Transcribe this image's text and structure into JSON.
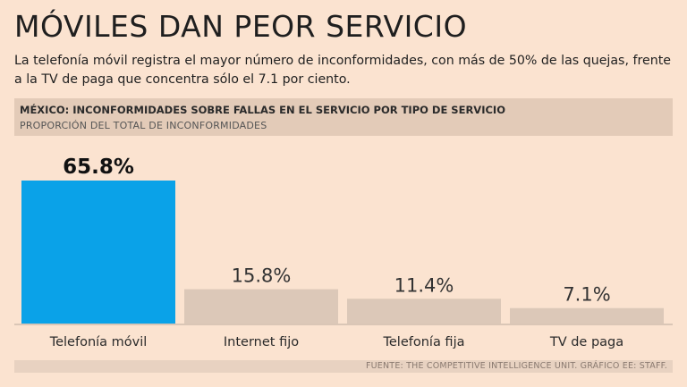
{
  "headline": "MÓVILES DAN PEOR SERVICIO",
  "dek": "La telefonía móvil registra el mayor número de inconformidades, con más de 50% de las quejas, frente a la TV de paga que concentra sólo el 7.1 por ciento.",
  "chart_data": {
    "type": "bar",
    "title": "MÉXICO: INCONFORMIDADES SOBRE FALLAS EN EL SERVICIO POR TIPO DE SERVICIO",
    "subtitle": "PROPORCIÓN DEL TOTAL DE INCONFORMIDADES",
    "categories": [
      "Telefonía móvil",
      "Internet fijo",
      "Telefonía fija",
      "TV de paga"
    ],
    "values": [
      65.8,
      15.8,
      11.4,
      7.1
    ],
    "value_labels": [
      "65.8%",
      "15.8%",
      "11.4%",
      "7.1%"
    ],
    "highlight_index": 0,
    "ylim": [
      0,
      65.8
    ],
    "xlabel": "",
    "ylabel": "",
    "grid": false,
    "colors": {
      "highlight": "#0aa2e8",
      "default": "#dcc8b8",
      "axis": "#b8a89c"
    }
  },
  "source": "FUENTE: THE COMPETITIVE INTELLIGENCE UNIT.  GRÁFICO EE: STAFF."
}
